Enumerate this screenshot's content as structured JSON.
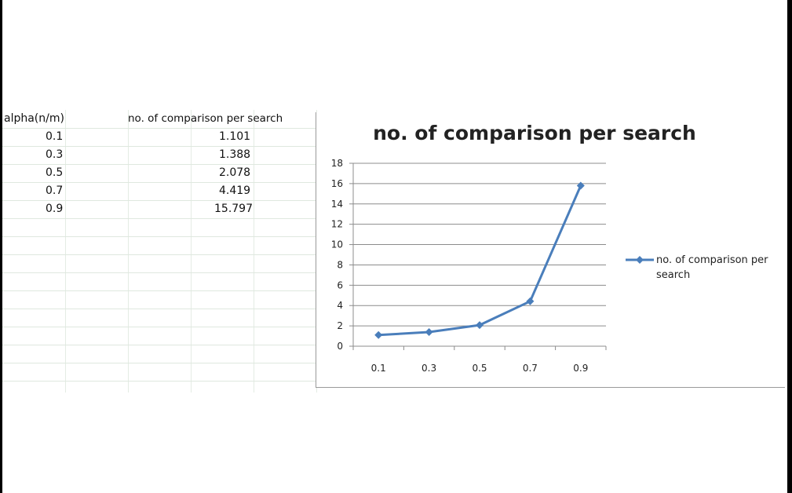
{
  "table": {
    "header_col1": "alpha(n/m)",
    "header_col2": "no. of comparison per search",
    "rows": [
      {
        "alpha": "0.1",
        "value": "1.101"
      },
      {
        "alpha": "0.3",
        "value": "1.388"
      },
      {
        "alpha": "0.5",
        "value": "2.078"
      },
      {
        "alpha": "0.7",
        "value": "4.419"
      },
      {
        "alpha": "0.9",
        "value": "15.797"
      }
    ]
  },
  "chart_data": {
    "type": "line",
    "title": "no. of comparison per search",
    "categories": [
      "0.1",
      "0.3",
      "0.5",
      "0.7",
      "0.9"
    ],
    "series": [
      {
        "name": "no. of comparison per search",
        "values": [
          1.101,
          1.388,
          2.078,
          4.419,
          15.797
        ],
        "color": "#4a7ebb"
      }
    ],
    "yticks": [
      "0",
      "2",
      "4",
      "6",
      "8",
      "10",
      "12",
      "14",
      "16",
      "18"
    ],
    "ylim": [
      0,
      18
    ],
    "xlabel": "",
    "ylabel": "",
    "grid": true,
    "legend_position": "right",
    "legend_line1": "no. of comparison per",
    "legend_line2": "search"
  }
}
